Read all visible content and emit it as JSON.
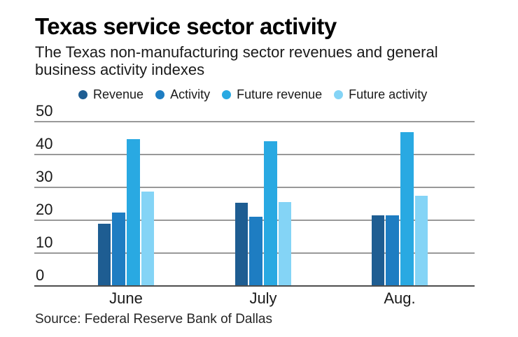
{
  "header": {
    "title": "Texas service sector activity",
    "subtitle_lines": [
      "The Texas non-manufacturing sector revenues and general",
      "business activity indexes"
    ]
  },
  "source": "Source: Federal Reserve Bank of Dallas",
  "colors": {
    "revenue": "#1e5d92",
    "activity": "#1e7dc2",
    "future_revenue": "#29a9e2",
    "future_activity": "#84d4f6",
    "gridline": "#999999",
    "axis_line": "#4d4d4d",
    "text": "#1a1a1a"
  },
  "chart_data": {
    "type": "bar",
    "title": "Texas service sector activity",
    "subtitle": "The Texas non-manufacturing sector revenues and general business activity indexes",
    "categories": [
      "June",
      "July",
      "Aug."
    ],
    "series": [
      {
        "name": "Revenue",
        "color": "#1e5d92",
        "values": [
          18.9,
          25.2,
          21.5
        ]
      },
      {
        "name": "Activity",
        "color": "#1e7dc2",
        "values": [
          22.3,
          21.0,
          21.5
        ]
      },
      {
        "name": "Future revenue",
        "color": "#29a9e2",
        "values": [
          44.7,
          44.1,
          46.8
        ]
      },
      {
        "name": "Future activity",
        "color": "#84d4f6",
        "values": [
          28.6,
          25.4,
          27.4
        ]
      }
    ],
    "y_ticks": [
      0,
      10,
      20,
      30,
      40,
      50
    ],
    "ylim": [
      0,
      50
    ],
    "grid": true,
    "legend_position": "top",
    "source": "Source: Federal Reserve Bank of Dallas"
  }
}
